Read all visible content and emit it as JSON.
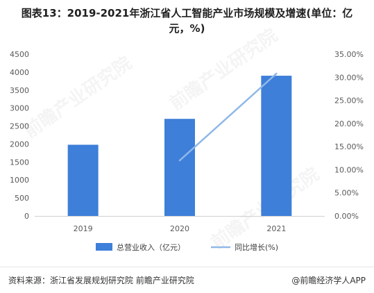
{
  "title_line1": "图表13：2019-2021年浙江省人工智能产业市场规模及增速(单位：亿",
  "title_line2": "元，%)",
  "chart_data": {
    "type": "bar",
    "categories": [
      "2019",
      "2020",
      "2021"
    ],
    "series": [
      {
        "name": "总营业收入（亿元）",
        "type": "bar",
        "axis": "left",
        "color": "#3d7fd9",
        "values": [
          1980,
          2700,
          3900
        ]
      },
      {
        "name": "同比增长(%)",
        "type": "line",
        "axis": "right",
        "color": "#8fb8e8",
        "values": [
          null,
          12.0,
          30.8
        ]
      }
    ],
    "ylim": [
      0,
      4500
    ],
    "y2lim": [
      0,
      35
    ],
    "yticks": [
      "0",
      "500",
      "1000",
      "1500",
      "2000",
      "2500",
      "3000",
      "3500",
      "4000",
      "4500"
    ],
    "y2ticks": [
      "0.00%",
      "5.00%",
      "10.00%",
      "15.00%",
      "20.00%",
      "25.00%",
      "30.00%",
      "35.00%"
    ],
    "legend_position": "bottom",
    "grid": false
  },
  "source": "资料来源：浙江省发展规划研究院 前瞻产业研究院",
  "brand": "@前瞻经济学人APP",
  "watermark": "前瞻产业研究院"
}
